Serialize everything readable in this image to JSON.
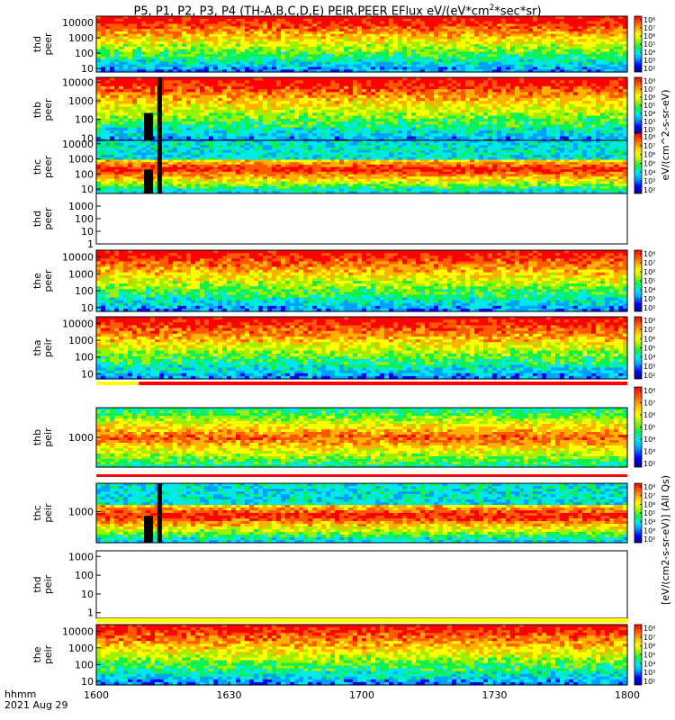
{
  "title_parts": {
    "main": "P5, P1, P2, P3, P4 (TH-A,B,C,D,E) PEIR,PEER EFlux eV/(eV*cm",
    "sup": "2",
    "tail": "*sec*sr)"
  },
  "time_axis": {
    "label_top": "hhmm",
    "label_bottom": "2021 Aug 29",
    "ticks": [
      "1600",
      "1630",
      "1700",
      "1730",
      "1800"
    ],
    "tick_minutes": [
      0,
      30,
      60,
      90,
      120
    ]
  },
  "colors": {
    "colormap": [
      "#00008a",
      "#0000ff",
      "#00a0ff",
      "#00e8e8",
      "#10f050",
      "#9cf000",
      "#ffff00",
      "#ffb000",
      "#ff5a00",
      "#ff0000"
    ],
    "fill": "#f0f0f0",
    "frame": "#000000",
    "bar_red": "#ff0000",
    "bar_yellow": "#ffff00"
  },
  "colorbar_ticks": [
    "10⁸",
    "10⁷",
    "10⁶",
    "10⁵",
    "10⁴",
    "10³",
    "10²"
  ],
  "colorbar_labels": {
    "peer": "eV/(cm^2-s-sr-eV)",
    "peir": "[eV/(cm2-s-sr-eV)] (All Qs)"
  },
  "chart_data": [
    {
      "type": "heatmap",
      "ylabel": "thd\npeer",
      "yticks": [
        "10000",
        "1000",
        "100",
        "10"
      ],
      "ylim": [
        6,
        25000
      ],
      "log": true,
      "has_data": true
    },
    {
      "type": "heatmap",
      "ylabel": "thb\npeer",
      "yticks": [
        "10000",
        "1000",
        "100",
        "10"
      ],
      "ylim": [
        6,
        18000
      ],
      "log": true,
      "has_data": true
    },
    {
      "type": "heatmap",
      "ylabel": "thc\npeer",
      "yticks": [
        "10000",
        "1000",
        "100",
        "10"
      ],
      "ylim": [
        5,
        17000
      ],
      "log": true,
      "has_data": true
    },
    {
      "type": "heatmap",
      "ylabel": "thd\npeer",
      "yticks": [
        "1000",
        "100",
        "10",
        "1"
      ],
      "ylim": [
        1,
        10000
      ],
      "log": true,
      "has_data": false
    },
    {
      "type": "heatmap",
      "ylabel": "the\npeer",
      "yticks": [
        "10000",
        "1000",
        "100",
        "10"
      ],
      "ylim": [
        6,
        25000
      ],
      "log": true,
      "has_data": true
    },
    {
      "type": "heatmap",
      "ylabel": "tha\npeir",
      "yticks": [
        "10000",
        "1000",
        "100",
        "10"
      ],
      "ylim": [
        5,
        25000
      ],
      "log": true,
      "has_data": true
    },
    {
      "type": "heatmap",
      "ylabel": "thb\npeir",
      "yticks": [
        "1000"
      ],
      "ylim": [
        250,
        4000
      ],
      "log": true,
      "has_data": true
    },
    {
      "type": "heatmap",
      "ylabel": "thc\npeir",
      "yticks": [
        "1000"
      ],
      "ylim": [
        220,
        4000
      ],
      "log": true,
      "has_data": true
    },
    {
      "type": "heatmap",
      "ylabel": "thd\npeir",
      "yticks": [
        "1000",
        "100",
        "10",
        "1"
      ],
      "ylim": [
        0.5,
        2000
      ],
      "log": true,
      "has_data": false
    },
    {
      "type": "heatmap",
      "ylabel": "the\npeir",
      "yticks": [
        "10000",
        "1000",
        "100",
        "10"
      ],
      "ylim": [
        6,
        25000
      ],
      "log": true,
      "has_data": true
    }
  ]
}
